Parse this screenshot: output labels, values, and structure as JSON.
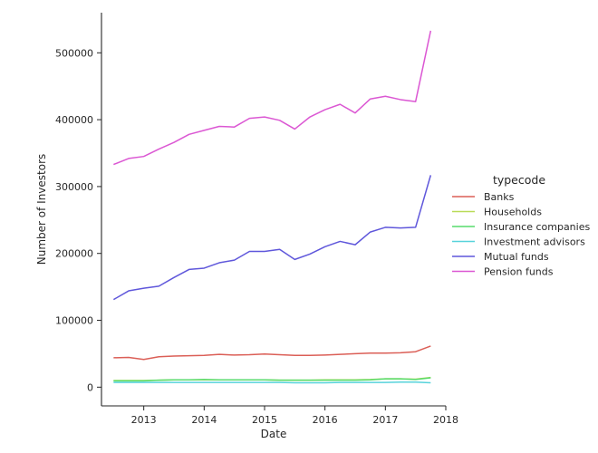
{
  "chart_data": {
    "type": "line",
    "xlabel": "Date",
    "ylabel": "Number of Investors",
    "xlim": [
      2012.3,
      2018.0
    ],
    "ylim": [
      -28000,
      560000
    ],
    "x_ticks": [
      2013,
      2014,
      2015,
      2016,
      2017,
      2018
    ],
    "y_ticks": [
      0,
      100000,
      200000,
      300000,
      400000,
      500000
    ],
    "grid": false,
    "legend_title": "typecode",
    "legend_position": "center-right",
    "x": [
      2012.5,
      2012.75,
      2013.0,
      2013.25,
      2013.5,
      2013.75,
      2014.0,
      2014.25,
      2014.5,
      2014.75,
      2015.0,
      2015.25,
      2015.5,
      2015.75,
      2016.0,
      2016.25,
      2016.5,
      2016.75,
      2017.0,
      2017.25,
      2017.5,
      2017.75
    ],
    "series": [
      {
        "name": "Banks",
        "color": "#db5f57",
        "values": [
          44000,
          44500,
          41500,
          45500,
          46500,
          47000,
          47500,
          49000,
          48000,
          48500,
          49500,
          48500,
          47500,
          47500,
          48000,
          49000,
          50000,
          51000,
          51000,
          51500,
          53000,
          61500
        ]
      },
      {
        "name": "Households",
        "color": "#b9db57",
        "values": [
          10000,
          10000,
          10000,
          10500,
          11000,
          11000,
          11000,
          11000,
          11000,
          11000,
          11000,
          10500,
          10500,
          10500,
          11000,
          11000,
          11000,
          11500,
          12500,
          12500,
          12000,
          14500
        ]
      },
      {
        "name": "Insurance companies",
        "color": "#57db6c",
        "values": [
          9500,
          9500,
          9500,
          10500,
          11000,
          11000,
          11500,
          11000,
          11000,
          11000,
          11000,
          10500,
          10500,
          10500,
          10500,
          10500,
          10500,
          11000,
          12500,
          12500,
          11500,
          14000
        ]
      },
      {
        "name": "Investment advisors",
        "color": "#57d3db",
        "values": [
          7000,
          7000,
          7000,
          7000,
          7000,
          7000,
          7000,
          7000,
          7000,
          7000,
          7000,
          7000,
          6500,
          6500,
          6500,
          7000,
          7000,
          7000,
          7000,
          7500,
          7500,
          6500
        ]
      },
      {
        "name": "Mutual funds",
        "color": "#5f57db",
        "values": [
          131000,
          144000,
          148000,
          151000,
          164000,
          176000,
          178000,
          186000,
          190000,
          203000,
          203000,
          206000,
          191000,
          199000,
          210000,
          218000,
          213000,
          232000,
          239000,
          238000,
          239000,
          317000
        ]
      },
      {
        "name": "Pension funds",
        "color": "#db57d3",
        "values": [
          333000,
          342000,
          345000,
          356000,
          366000,
          378000,
          384000,
          390000,
          389000,
          402000,
          404000,
          399000,
          386000,
          404000,
          415000,
          423000,
          410000,
          431000,
          435000,
          430000,
          427000,
          533000
        ]
      }
    ]
  }
}
